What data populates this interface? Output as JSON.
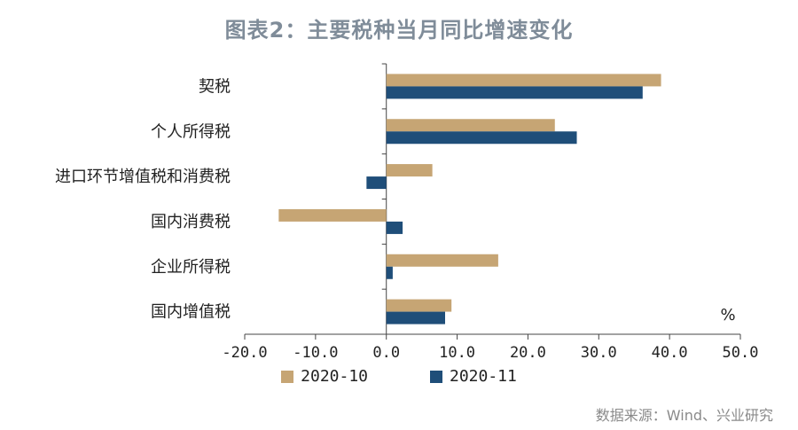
{
  "chart_data": {
    "type": "bar",
    "orientation": "horizontal",
    "title": "图表2：主要税种当月同比增速变化",
    "categories": [
      "契税",
      "个人所得税",
      "进口环节增值税和消费税",
      "国内消费税",
      "企业所得税",
      "国内增值税"
    ],
    "series": [
      {
        "name": "2020-10",
        "color": "#c6a574",
        "values": [
          38.8,
          23.8,
          6.5,
          -15.2,
          15.8,
          9.2
        ]
      },
      {
        "name": "2020-11",
        "color": "#1f4e79",
        "values": [
          36.2,
          26.9,
          -2.8,
          2.3,
          0.9,
          8.3
        ]
      }
    ],
    "xlim": [
      -20,
      50
    ],
    "xticks": [
      "-20.0",
      "-10.0",
      "0.0",
      "10.0",
      "20.0",
      "30.0",
      "40.0",
      "50.0"
    ],
    "xlabel": "%",
    "source": "数据来源：Wind、兴业研究"
  }
}
